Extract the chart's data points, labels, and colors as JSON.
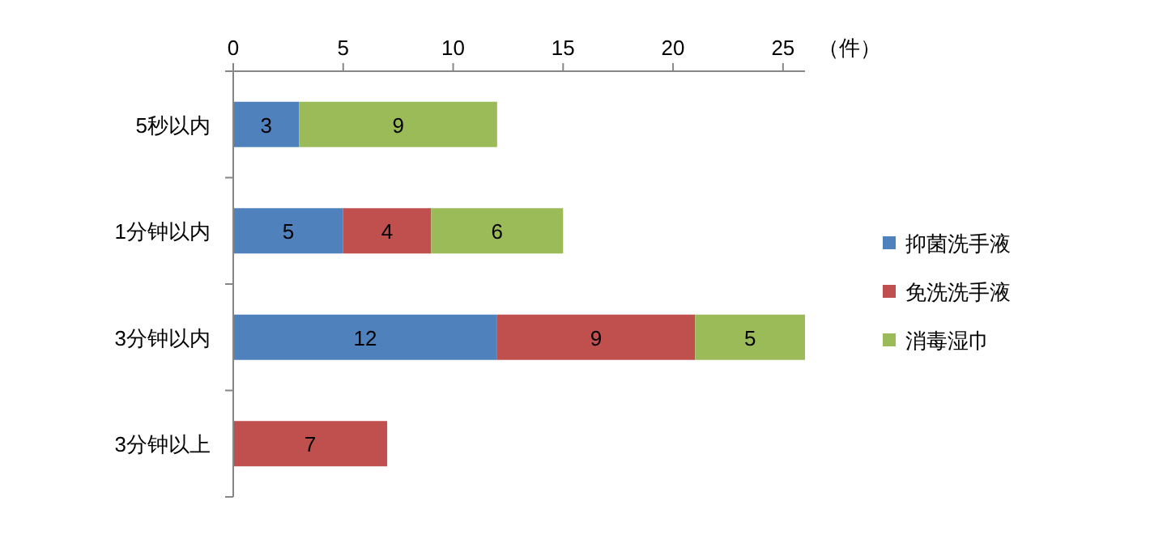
{
  "chart_data": {
    "type": "bar",
    "orientation": "horizontal",
    "stacked": true,
    "xlabel": "（件）",
    "categories": [
      "5秒以内",
      "1分钟以内",
      "3分钟以内",
      "3分钟以上"
    ],
    "series": [
      {
        "name": "抑菌洗手液",
        "color": "#4f81bd",
        "values": [
          3,
          5,
          12,
          null
        ]
      },
      {
        "name": "免洗洗手液",
        "color": "#c0504d",
        "values": [
          null,
          4,
          9,
          7
        ]
      },
      {
        "name": "消毒湿巾",
        "color": "#9bbb59",
        "values": [
          9,
          6,
          5,
          null
        ]
      }
    ],
    "xlim": [
      0,
      26
    ],
    "xticks": [
      0,
      5,
      10,
      15,
      20,
      25
    ],
    "data_labels": true,
    "legend": "right",
    "grid": false
  }
}
